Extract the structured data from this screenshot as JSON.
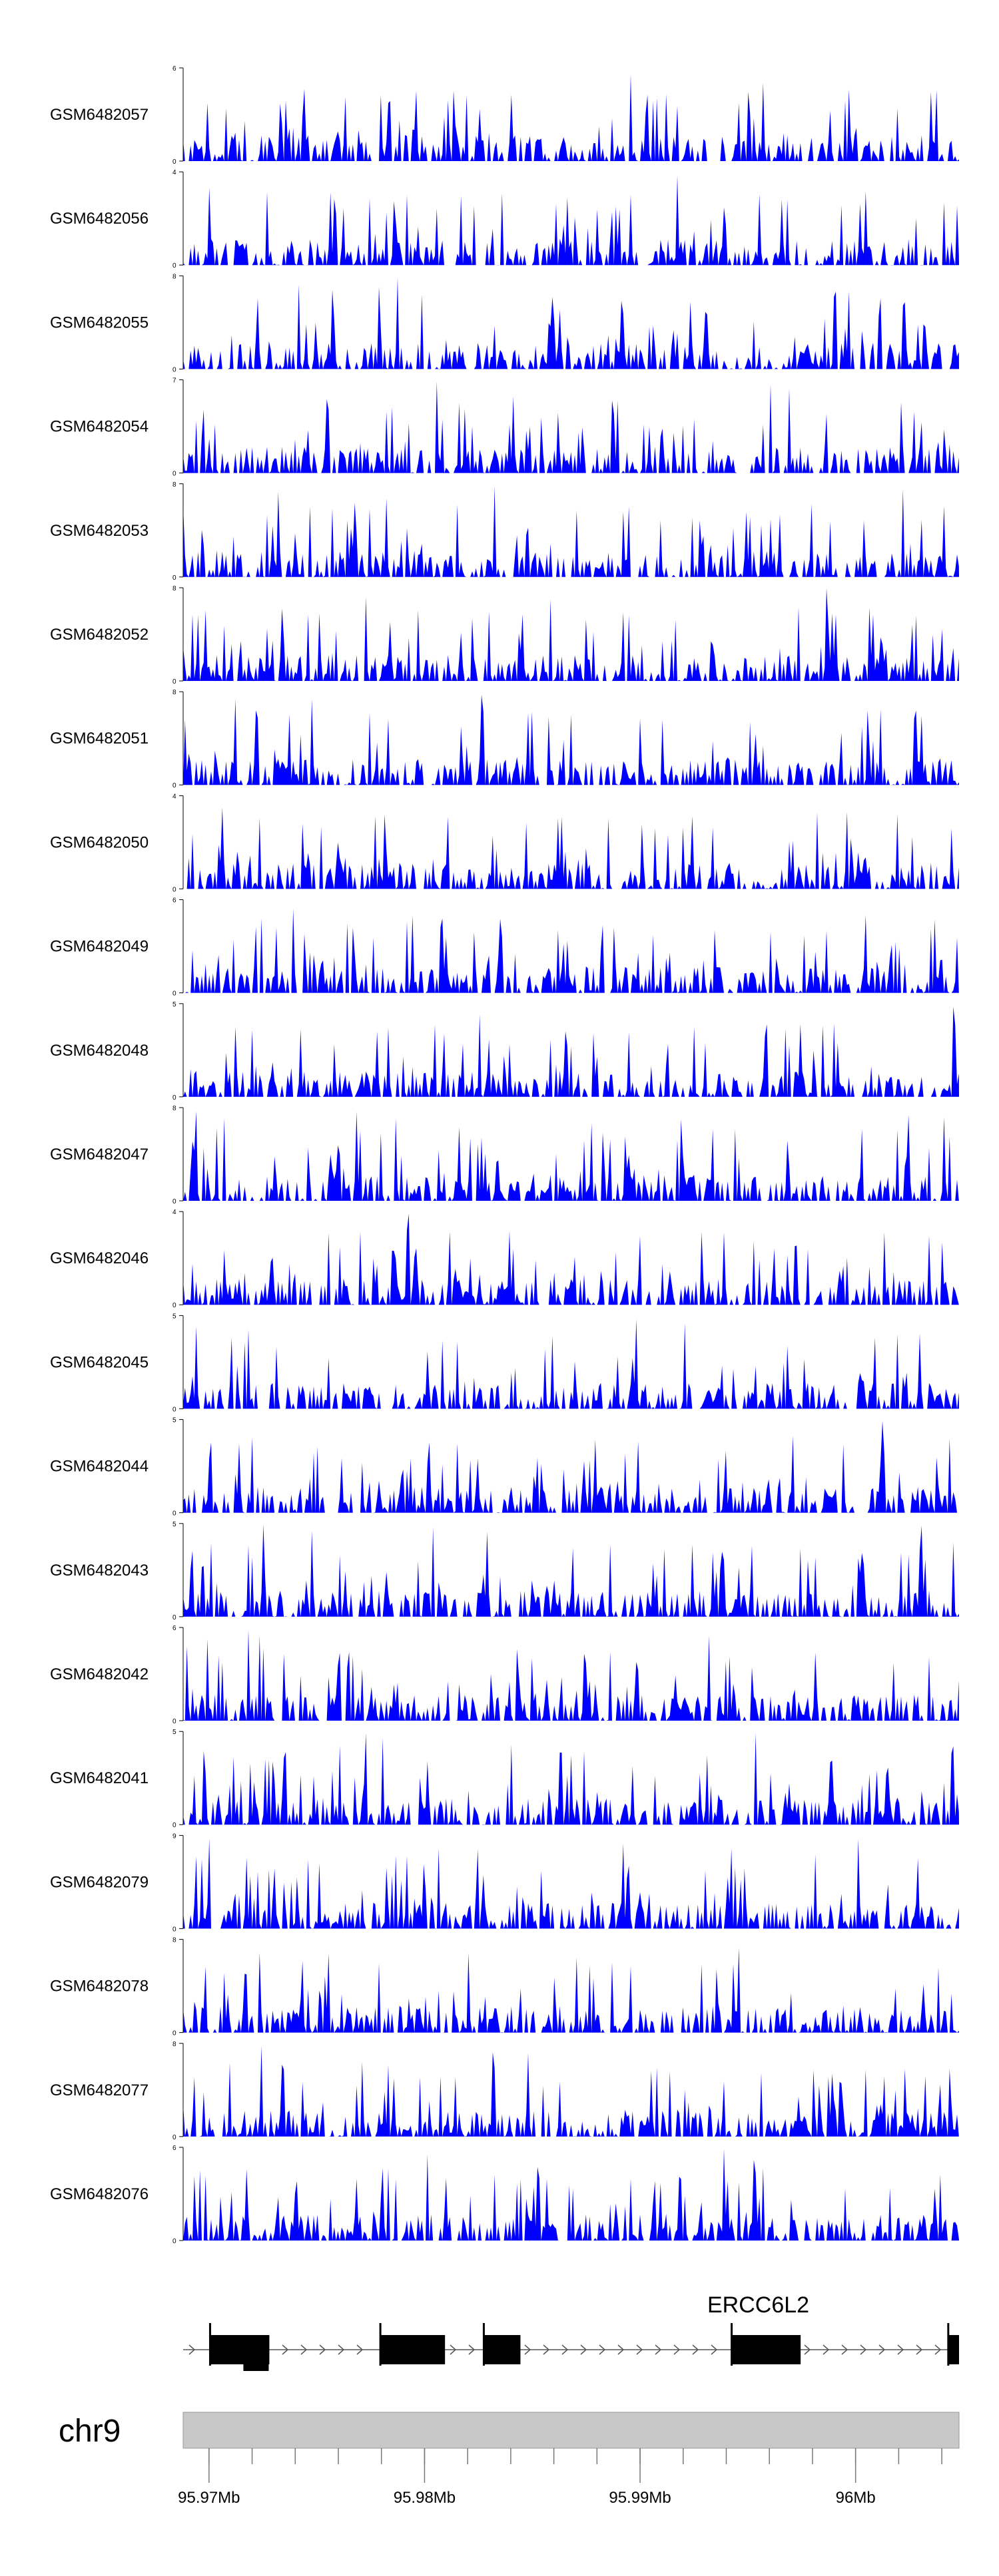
{
  "chart_data": {
    "type": "area",
    "region": {
      "chromosome": "chr9",
      "start_mb": 95.9688,
      "end_mb": 96.0048
    },
    "tracks": [
      {
        "name": "GSM6482057",
        "ymax": "6",
        "ymin": "0"
      },
      {
        "name": "GSM6482056",
        "ymax": "4",
        "ymin": "0"
      },
      {
        "name": "GSM6482055",
        "ymax": "8",
        "ymin": "0"
      },
      {
        "name": "GSM6482054",
        "ymax": "7",
        "ymin": "0"
      },
      {
        "name": "GSM6482053",
        "ymax": "8",
        "ymin": "0"
      },
      {
        "name": "GSM6482052",
        "ymax": "8",
        "ymin": "0"
      },
      {
        "name": "GSM6482051",
        "ymax": "8",
        "ymin": "0"
      },
      {
        "name": "GSM6482050",
        "ymax": "4",
        "ymin": "0"
      },
      {
        "name": "GSM6482049",
        "ymax": "6",
        "ymin": "0"
      },
      {
        "name": "GSM6482048",
        "ymax": "5",
        "ymin": "0"
      },
      {
        "name": "GSM6482047",
        "ymax": "8",
        "ymin": "0"
      },
      {
        "name": "GSM6482046",
        "ymax": "4",
        "ymin": "0"
      },
      {
        "name": "GSM6482045",
        "ymax": "5",
        "ymin": "0"
      },
      {
        "name": "GSM6482044",
        "ymax": "5",
        "ymin": "0"
      },
      {
        "name": "GSM6482043",
        "ymax": "5",
        "ymin": "0"
      },
      {
        "name": "GSM6482042",
        "ymax": "6",
        "ymin": "0"
      },
      {
        "name": "GSM6482041",
        "ymax": "5",
        "ymin": "0"
      },
      {
        "name": "GSM6482079",
        "ymax": "9",
        "ymin": "0"
      },
      {
        "name": "GSM6482078",
        "ymax": "8",
        "ymin": "0"
      },
      {
        "name": "GSM6482077",
        "ymax": "8",
        "ymin": "0"
      },
      {
        "name": "GSM6482076",
        "ymax": "6",
        "ymin": "0"
      }
    ],
    "gene": {
      "name": "ERCC6L2",
      "strand": "+",
      "exons_mb": [
        [
          95.97005,
          95.9728
        ],
        [
          95.97795,
          95.98095
        ],
        [
          95.98275,
          95.98445
        ],
        [
          95.99425,
          95.99745
        ],
        [
          96.0043,
          96.0048
        ]
      ]
    },
    "axis": {
      "chromosome_label": "chr9",
      "major_ticks": [
        {
          "value": 95.97,
          "label": "95.97Mb"
        },
        {
          "value": 95.98,
          "label": "95.98Mb"
        },
        {
          "value": 95.99,
          "label": "95.99Mb"
        },
        {
          "value": 96.0,
          "label": "96Mb"
        }
      ],
      "minor_tick_step_mb": 0.002
    },
    "colors": {
      "signal": "#0000ff",
      "gene": "#000000",
      "ideogram": "#c8c8c8"
    }
  }
}
